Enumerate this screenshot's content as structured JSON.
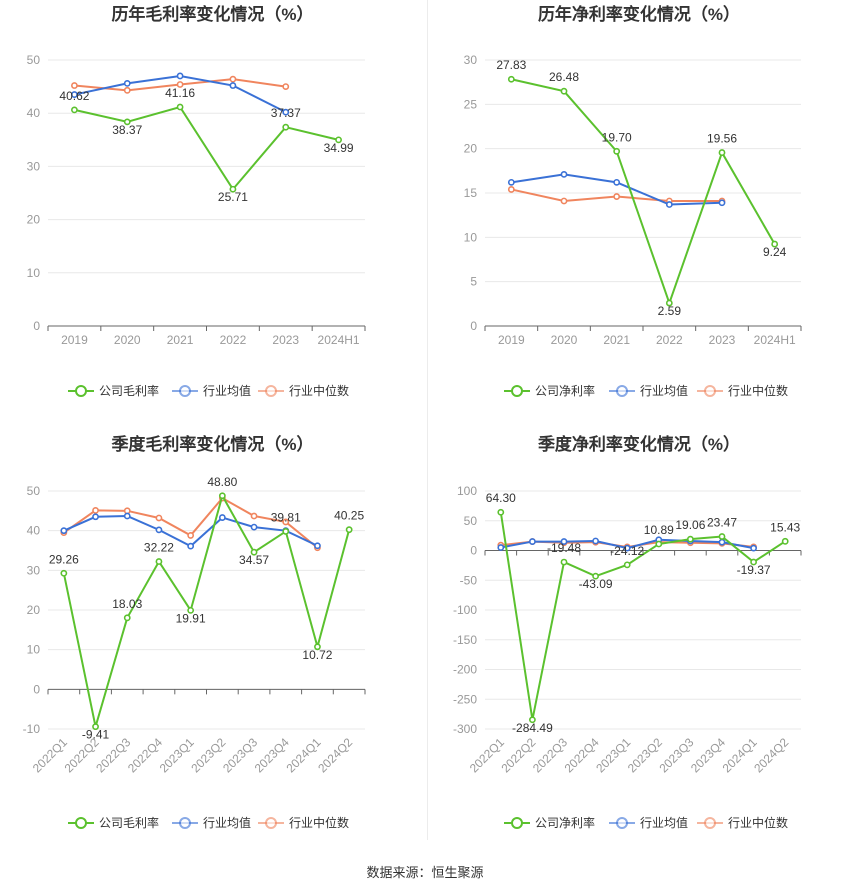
{
  "footer": "数据来源：恒生聚源",
  "colors": {
    "company": "#5bc12e",
    "avg": "#3a71d6",
    "median": "#f0855e",
    "axis": "#999999",
    "grid": "#e8e8e8"
  },
  "chart_data": [
    {
      "type": "line",
      "title": "历年毛利率变化情况（%）",
      "categories": [
        "2019",
        "2020",
        "2021",
        "2022",
        "2023",
        "2024H1"
      ],
      "ylim": [
        0,
        50
      ],
      "yticks": [
        0,
        10,
        20,
        30,
        40,
        50
      ],
      "legend": "bottom",
      "series": [
        {
          "name": "公司毛利率",
          "values": [
            40.62,
            38.37,
            41.16,
            25.71,
            37.37,
            34.99
          ],
          "labels": [
            "40.62",
            "38.37",
            "41.16",
            "25.71",
            "37.37",
            "34.99"
          ]
        },
        {
          "name": "行业均值",
          "values": [
            43.5,
            45.6,
            47.0,
            45.2,
            40.2,
            null
          ]
        },
        {
          "name": "行业中位数",
          "values": [
            45.2,
            44.3,
            45.4,
            46.4,
            45.0,
            null
          ]
        }
      ]
    },
    {
      "type": "line",
      "title": "历年净利率变化情况（%）",
      "categories": [
        "2019",
        "2020",
        "2021",
        "2022",
        "2023",
        "2024H1"
      ],
      "ylim": [
        0,
        30
      ],
      "yticks": [
        0,
        5,
        10,
        15,
        20,
        25,
        30
      ],
      "legend": "bottom",
      "series": [
        {
          "name": "公司净利率",
          "values": [
            27.83,
            26.48,
            19.7,
            2.59,
            19.56,
            9.24
          ],
          "labels": [
            "27.83",
            "26.48",
            "19.70",
            "2.59",
            "19.56",
            "9.24"
          ]
        },
        {
          "name": "行业均值",
          "values": [
            16.2,
            17.1,
            16.2,
            13.7,
            13.9,
            null
          ]
        },
        {
          "name": "行业中位数",
          "values": [
            15.4,
            14.1,
            14.6,
            14.1,
            14.1,
            null
          ]
        }
      ]
    },
    {
      "type": "line",
      "title": "季度毛利率变化情况（%）",
      "categories": [
        "2022Q1",
        "2022Q2",
        "2022Q3",
        "2022Q4",
        "2023Q1",
        "2023Q2",
        "2023Q3",
        "2023Q4",
        "2024Q1",
        "2024Q2"
      ],
      "ylim": [
        -10,
        50
      ],
      "yticks": [
        -10,
        0,
        10,
        20,
        30,
        40,
        50
      ],
      "legend": "bottom",
      "series": [
        {
          "name": "公司毛利率",
          "values": [
            29.26,
            -9.41,
            18.03,
            32.22,
            19.91,
            48.8,
            34.57,
            39.81,
            10.72,
            40.25
          ],
          "labels": [
            "29.26",
            "-9.41",
            "18.03",
            "32.22",
            "19.91",
            "48.80",
            "34.57",
            "39.81",
            "10.72",
            "40.25"
          ]
        },
        {
          "name": "行业均值",
          "values": [
            40.0,
            43.5,
            43.7,
            40.2,
            36.1,
            43.3,
            40.9,
            40.0,
            36.2,
            null
          ]
        },
        {
          "name": "行业中位数",
          "values": [
            39.5,
            45.1,
            45.0,
            43.2,
            38.8,
            48.2,
            43.7,
            42.2,
            35.7,
            null
          ]
        }
      ]
    },
    {
      "type": "line",
      "title": "季度净利率变化情况（%）",
      "categories": [
        "2022Q1",
        "2022Q2",
        "2022Q3",
        "2022Q4",
        "2023Q1",
        "2023Q2",
        "2023Q3",
        "2023Q4",
        "2024Q1",
        "2024Q2"
      ],
      "ylim": [
        -300,
        100
      ],
      "yticks": [
        -300,
        -250,
        -200,
        -150,
        -100,
        -50,
        0,
        50,
        100
      ],
      "legend": "bottom",
      "series": [
        {
          "name": "公司净利率",
          "values": [
            64.3,
            -284.49,
            -19.48,
            -43.09,
            -24.12,
            10.89,
            19.06,
            23.47,
            -19.37,
            15.43
          ],
          "labels": [
            "64.30",
            "-284.49",
            "-19.48",
            "-43.09",
            "-24.12",
            "10.89",
            "19.06",
            "23.47",
            "-19.37",
            "15.43"
          ]
        },
        {
          "name": "行业均值",
          "values": [
            5.0,
            15.0,
            15.0,
            16.0,
            4.0,
            18.0,
            16.0,
            14.0,
            4.0,
            null
          ]
        },
        {
          "name": "行业中位数",
          "values": [
            9.0,
            15.0,
            13.0,
            14.0,
            6.0,
            14.0,
            13.0,
            12.0,
            6.0,
            null
          ]
        }
      ]
    }
  ]
}
